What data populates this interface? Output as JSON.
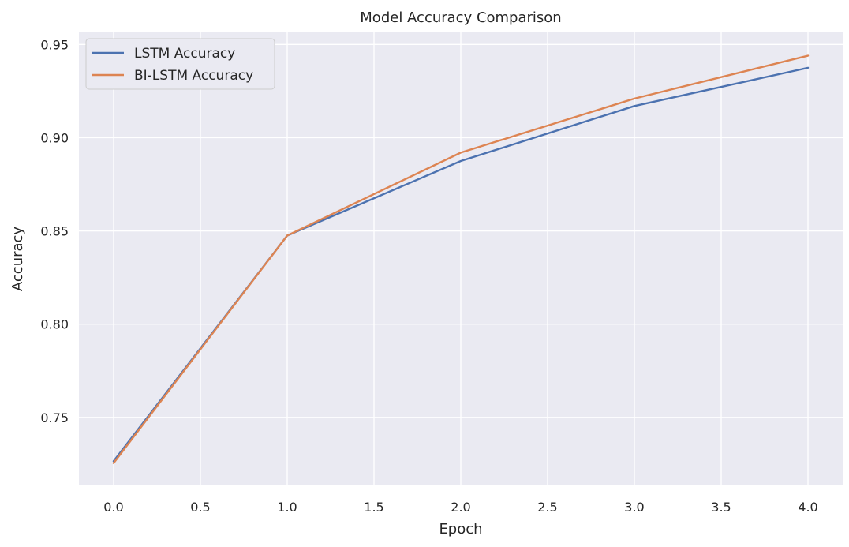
{
  "chart_data": {
    "type": "line",
    "title": "Model Accuracy Comparison",
    "xlabel": "Epoch",
    "ylabel": "Accuracy",
    "x": [
      0,
      1,
      2,
      3,
      4
    ],
    "xlim": [
      -0.2,
      4.2
    ],
    "ylim": [
      0.7135,
      0.9565
    ],
    "xticks": [
      0.0,
      0.5,
      1.0,
      1.5,
      2.0,
      2.5,
      3.0,
      3.5,
      4.0
    ],
    "xtick_labels": [
      "0.0",
      "0.5",
      "1.0",
      "1.5",
      "2.0",
      "2.5",
      "3.0",
      "3.5",
      "4.0"
    ],
    "yticks": [
      0.75,
      0.8,
      0.85,
      0.9,
      0.95
    ],
    "ytick_labels": [
      "0.75",
      "0.80",
      "0.85",
      "0.90",
      "0.95"
    ],
    "grid": true,
    "legend_position": "upper-left",
    "background_color": "#eaeaf2",
    "series": [
      {
        "name": "LSTM Accuracy",
        "color": "#4c72b0",
        "values": [
          0.7265,
          0.8475,
          0.8875,
          0.917,
          0.9375
        ]
      },
      {
        "name": "BI-LSTM Accuracy",
        "color": "#dd8452",
        "values": [
          0.7255,
          0.8475,
          0.892,
          0.921,
          0.944
        ]
      }
    ]
  }
}
